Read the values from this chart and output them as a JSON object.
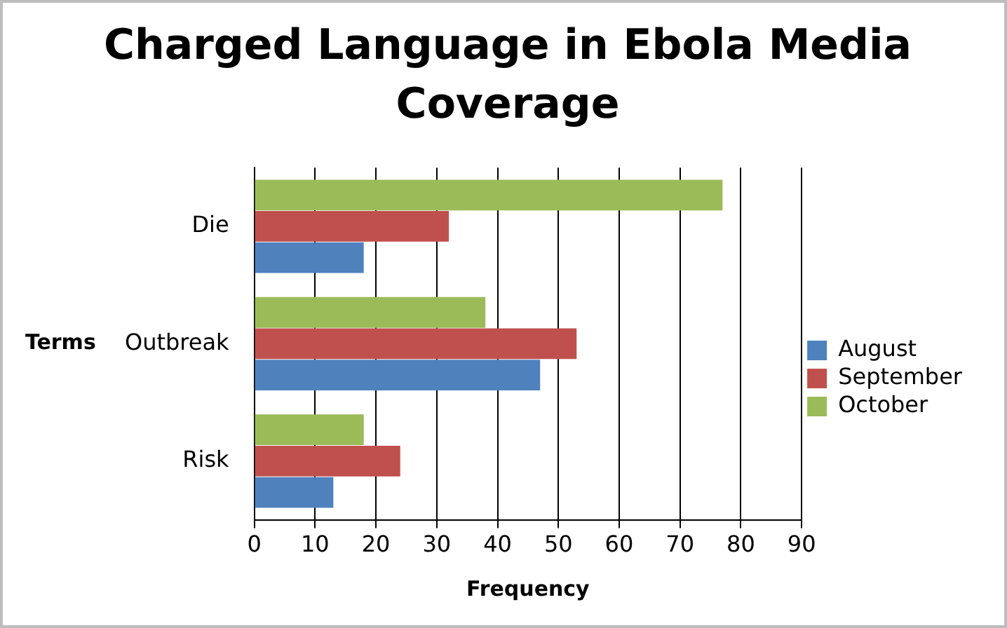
{
  "chart_data": {
    "type": "bar",
    "orientation": "horizontal",
    "title": "Charged Language in Ebola Media Coverage",
    "xlabel": "Frequency",
    "ylabel": "Terms",
    "categories": [
      "Die",
      "Outbreak",
      "Risk"
    ],
    "series": [
      {
        "name": "August",
        "color": "#4f81bd",
        "values": [
          18,
          47,
          13
        ]
      },
      {
        "name": "September",
        "color": "#c0504d",
        "values": [
          32,
          53,
          24
        ]
      },
      {
        "name": "October",
        "color": "#9bbb59",
        "values": [
          77,
          38,
          18
        ]
      }
    ],
    "xlim": [
      0,
      90
    ],
    "xticks": [
      0,
      10,
      20,
      30,
      40,
      50,
      60,
      70,
      80,
      90
    ],
    "grid": "x",
    "legend": "right"
  }
}
